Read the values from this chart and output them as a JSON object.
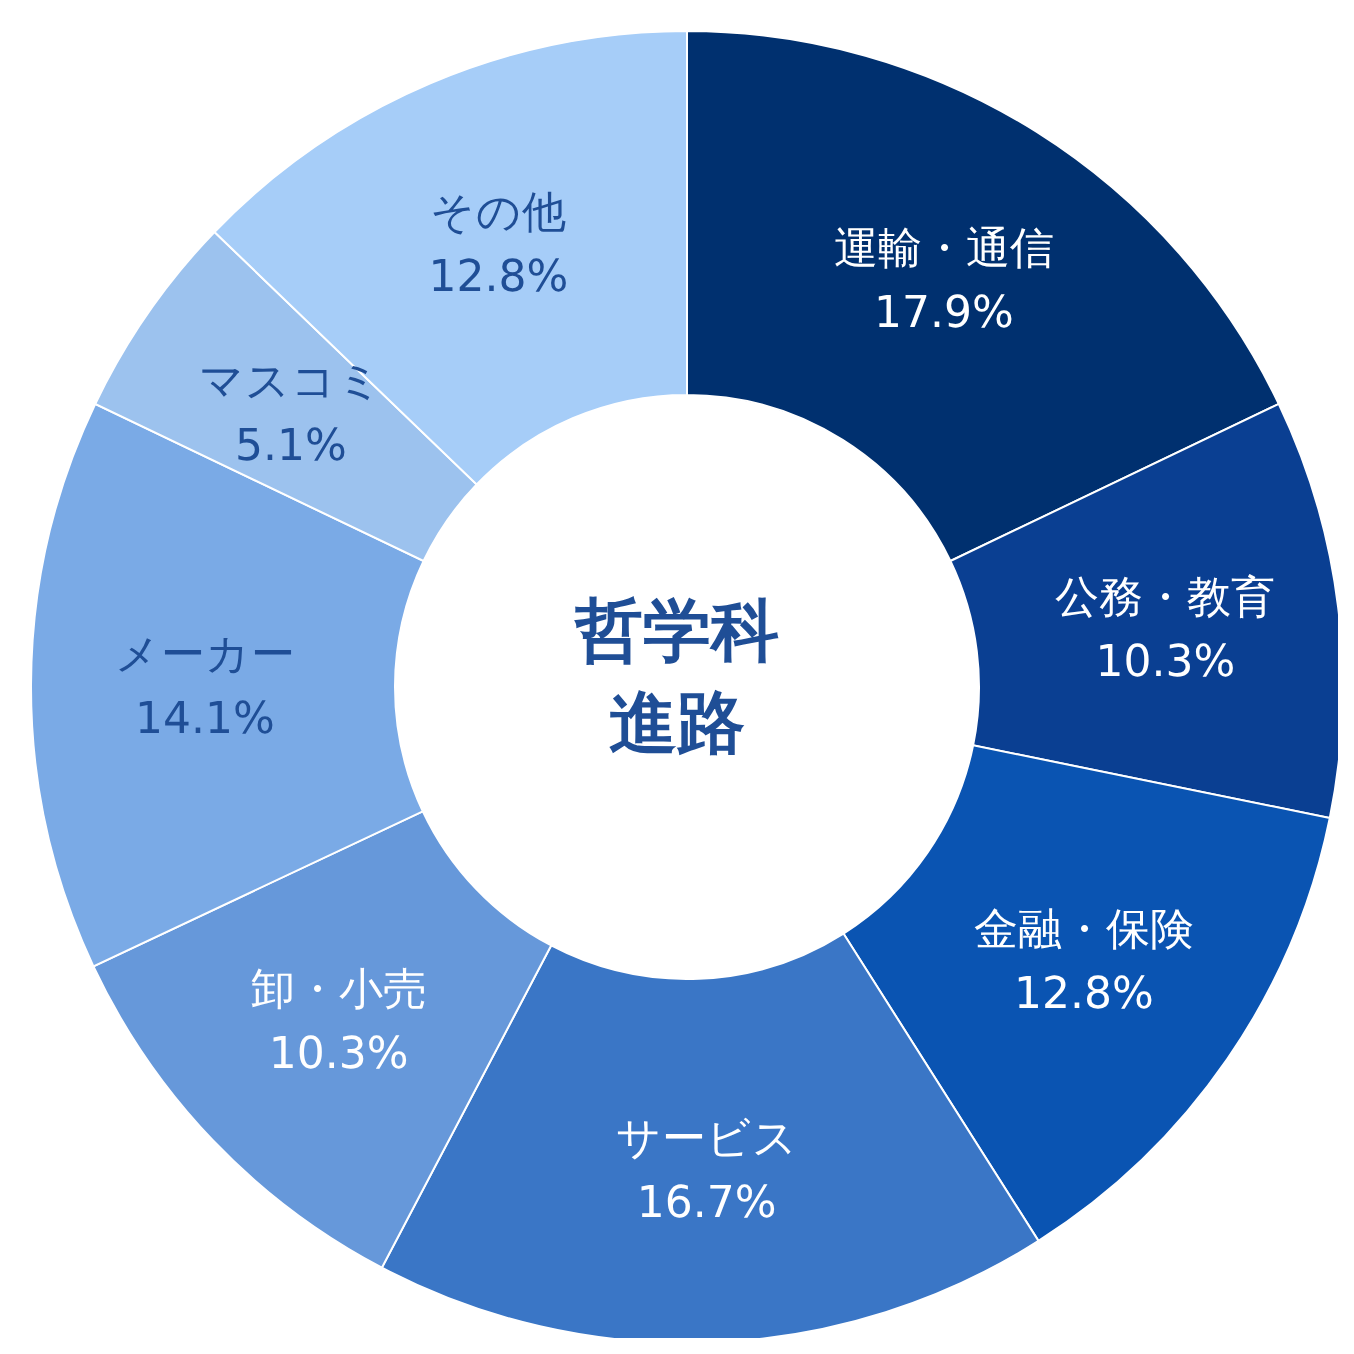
{
  "chart_data": {
    "type": "donut",
    "title": "哲学科進路",
    "categories": [
      "運輸・通信",
      "公務・教育",
      "金融・保険",
      "サービス",
      "卸・小売",
      "メーカー",
      "マスコミ",
      "その他"
    ],
    "values": [
      17.9,
      10.3,
      12.8,
      16.7,
      10.3,
      14.1,
      5.1,
      12.8
    ],
    "value_labels": [
      "17.9%",
      "10.3%",
      "12.8%",
      "16.7%",
      "10.3%",
      "14.1%",
      "5.1%",
      "12.8%"
    ],
    "colors": [
      "#00306f",
      "#0a3f92",
      "#0a54b2",
      "#3a76c6",
      "#6698da",
      "#7aaae6",
      "#9cc2ee",
      "#a6cdf8"
    ],
    "legend": false
  }
}
